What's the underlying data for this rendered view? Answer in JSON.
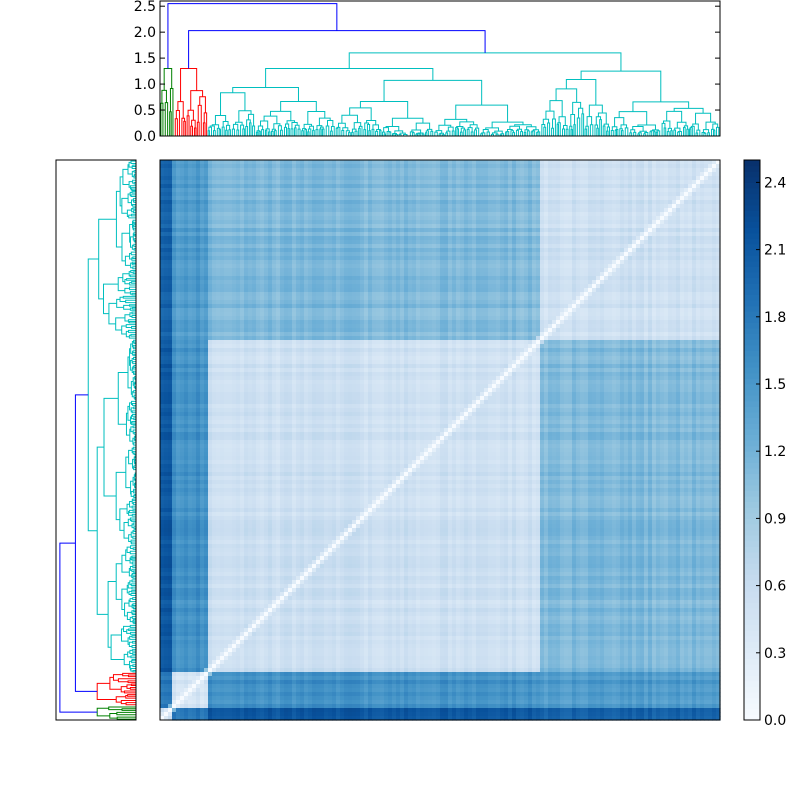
{
  "chart_data": [
    {
      "type": "dendrogram",
      "orientation": "top",
      "ylim": [
        0,
        2.6
      ],
      "yticks": [
        0.0,
        0.5,
        1.0,
        1.5,
        2.0,
        2.5
      ],
      "ytick_labels": [
        "0.0",
        "0.5",
        "1.0",
        "1.5",
        "2.0",
        "2.5"
      ],
      "cluster_colors": {
        "root": "#0000ff",
        "green": "#008000",
        "red": "#ff0000",
        "cyan": "#00bfbf"
      },
      "root_height": 2.55,
      "second_merge_height": 2.03,
      "clusters": [
        {
          "color": "green",
          "leaf_fraction": [
            0.0,
            0.025
          ],
          "height": 1.3
        },
        {
          "color": "red",
          "leaf_fraction": [
            0.025,
            0.085
          ],
          "height": 1.3
        },
        {
          "color": "cyan",
          "leaf_fraction": [
            0.085,
            1.0
          ],
          "height": 1.6
        }
      ]
    },
    {
      "type": "dendrogram",
      "orientation": "left",
      "cluster_colors": {
        "root": "#0000ff",
        "green": "#008000",
        "red": "#ff0000",
        "cyan": "#00bfbf"
      }
    },
    {
      "type": "heatmap",
      "colormap": "Blues",
      "vmin": 0.0,
      "vmax": 2.5,
      "description_blocks": "distance matrix ordered by dendrogram leaves; diagonal near 0",
      "colorbar": {
        "ticks": [
          0.0,
          0.3,
          0.6,
          0.9,
          1.2,
          1.5,
          1.8,
          2.1,
          2.4
        ],
        "tick_labels": [
          "0.0",
          "0.3",
          "0.6",
          "0.9",
          "1.2",
          "1.5",
          "1.8",
          "2.1",
          "2.4"
        ]
      }
    }
  ]
}
